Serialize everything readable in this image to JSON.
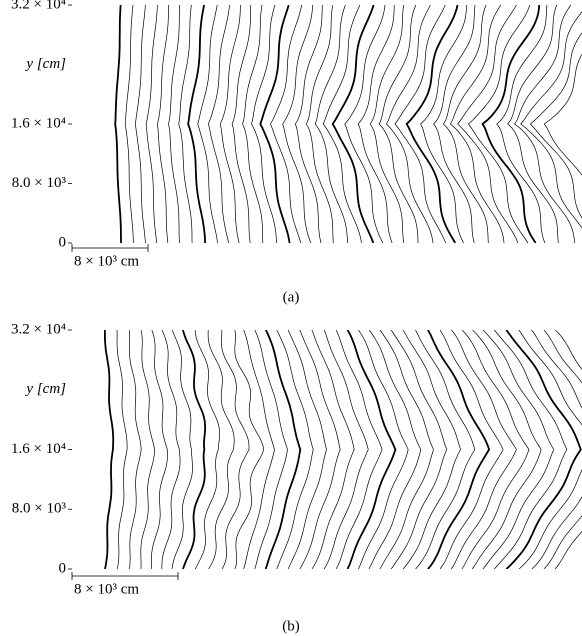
{
  "figure": {
    "panels": [
      {
        "y_label": "y [cm]",
        "scale_bar": "8 × 10³ cm",
        "caption": "(a)",
        "ylim": [
          0,
          32000
        ],
        "yticks": [
          {
            "value": 0,
            "label": "0"
          },
          {
            "value": 8000,
            "label": "8.0 × 10³"
          },
          {
            "value": 16000,
            "label": "1.6 × 10⁴"
          },
          {
            "value": 32000,
            "label": "3.2 × 10⁴"
          }
        ]
      },
      {
        "y_label": "y [cm]",
        "scale_bar": "8 × 10³ cm",
        "caption": "(b)",
        "ylim": [
          0,
          32000
        ],
        "yticks": [
          {
            "value": 0,
            "label": "0"
          },
          {
            "value": 8000,
            "label": "8.0 × 10³"
          },
          {
            "value": 16000,
            "label": "1.6 × 10⁴"
          },
          {
            "value": 32000,
            "label": "3.2 × 10⁴"
          }
        ]
      }
    ]
  }
}
